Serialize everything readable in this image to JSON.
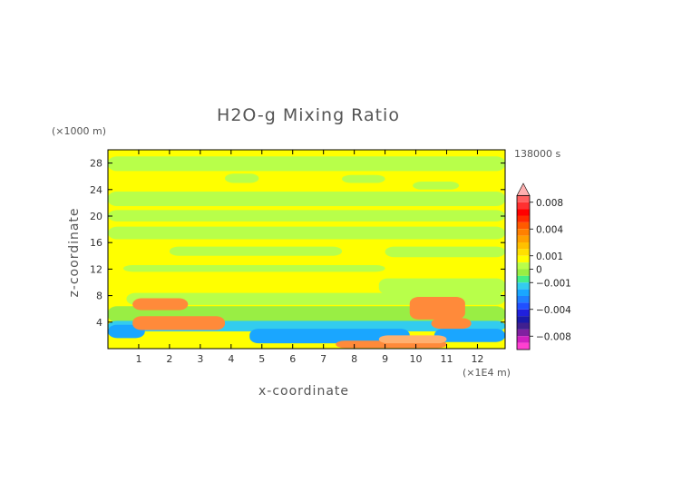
{
  "chart_data": {
    "type": "heatmap",
    "title": "H2O-g Mixing Ratio",
    "xlabel": "x-coordinate",
    "ylabel": "z-coordinate",
    "x_unit": "(×1E4 m)",
    "y_unit": "(×1000 m)",
    "time_label": "138000 s",
    "x_range": [
      0,
      12.9
    ],
    "y_range": [
      0,
      30
    ],
    "x_ticks": [
      1,
      2,
      3,
      4,
      5,
      6,
      7,
      8,
      9,
      10,
      11,
      12
    ],
    "y_ticks": [
      4,
      8,
      12,
      16,
      20,
      24,
      28
    ],
    "colorbar": {
      "labels": [
        "0.008",
        "0.004",
        "0.001",
        "0",
        "−0.001",
        "−0.004",
        "−0.008"
      ],
      "label_values": [
        0.008,
        0.004,
        0.001,
        0,
        -0.001,
        -0.004,
        -0.008
      ],
      "levels": [
        0.01,
        0.009,
        0.008,
        0.007,
        0.006,
        0.005,
        0.004,
        0.003,
        0.002,
        0.0015,
        0.001,
        0.0005,
        0,
        -0.0005,
        -0.001,
        -0.0015,
        -0.002,
        -0.003,
        -0.004,
        -0.005,
        -0.006,
        -0.007,
        -0.008,
        -0.009,
        -0.01
      ],
      "colors": [
        "#ffb0b0",
        "#ff6060",
        "#ff3030",
        "#ff0000",
        "#ff2a00",
        "#ff5a00",
        "#ff8000",
        "#ffa000",
        "#ffc000",
        "#ffe000",
        "#ffff00",
        "#b8ff4a",
        "#99ee44",
        "#44ee88",
        "#33ccee",
        "#1aa6ff",
        "#1f7fff",
        "#2050ff",
        "#2020dd",
        "#1a1aaa",
        "#402090",
        "#8020a0",
        "#d020c0",
        "#ff40d0"
      ]
    },
    "field_colors": {
      "background": "#ffff00",
      "light_green": "#b8ff4a",
      "green": "#99ee44",
      "cyan": "#33ccee",
      "blue": "#1aa6ff",
      "orange": "#ff8a3a",
      "pale_orange": "#ffb070"
    }
  }
}
